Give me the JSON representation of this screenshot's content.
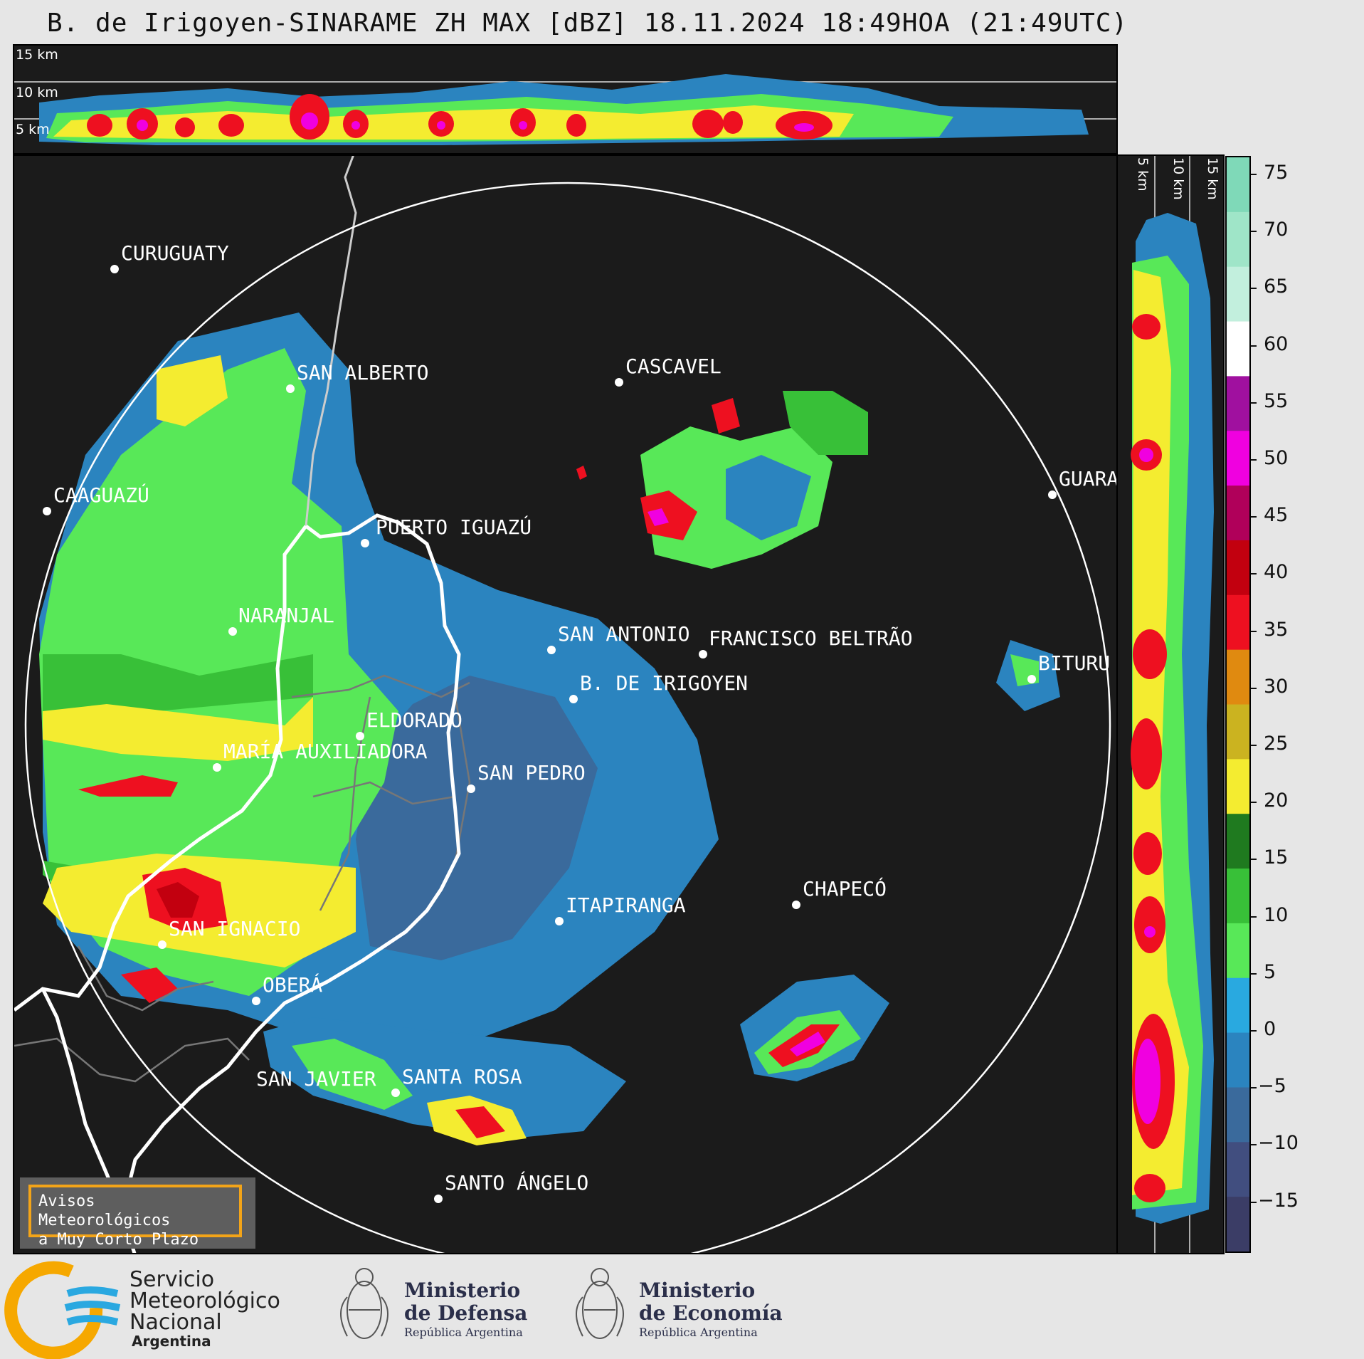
{
  "title": "B. de Irigoyen-SINARAME ZH MAX [dBZ] 18.11.2024 18:49HOA (21:49UTC)",
  "top_panel": {
    "labels": [
      "15 km",
      "10 km",
      "5 km"
    ]
  },
  "side_panel": {
    "labels": [
      "5 km",
      "10 km",
      "15 km"
    ]
  },
  "colorbar": {
    "unit": "dBZ",
    "ticks": [
      "75",
      "70",
      "65",
      "60",
      "55",
      "50",
      "45",
      "40",
      "35",
      "30",
      "25",
      "20",
      "15",
      "10",
      "5",
      "0",
      "−5",
      "−10",
      "−15"
    ],
    "stops": [
      "#7fd9b8",
      "#9fe5c8",
      "#c2efdd",
      "#ffffff",
      "#a0109f",
      "#f000e0",
      "#b0005a",
      "#c2000f",
      "#ee1020",
      "#e08a10",
      "#cbb320",
      "#f4ec30",
      "#1f7a1f",
      "#38c038",
      "#58e858",
      "#29a9e0",
      "#2b84bf",
      "#3a6a9c",
      "#414e7f",
      "#3b3d66"
    ]
  },
  "cities": [
    {
      "name": "CURUGUATY",
      "id": "curuguaty"
    },
    {
      "name": "SAN ALBERTO",
      "id": "san-alberto"
    },
    {
      "name": "CASCAVEL",
      "id": "cascavel"
    },
    {
      "name": "CAAGUAZÚ",
      "id": "caaguazu"
    },
    {
      "name": "GUARA",
      "id": "guara"
    },
    {
      "name": "PUERTO IGUAZÚ",
      "id": "puerto-iguazu"
    },
    {
      "name": "NARANJAL",
      "id": "naranjal"
    },
    {
      "name": "SAN ANTONIO",
      "id": "san-antonio"
    },
    {
      "name": "FRANCISCO BELTRÃO",
      "id": "francisco-beltrao"
    },
    {
      "name": "B. DE IRIGOYEN",
      "id": "b-de-irigoyen"
    },
    {
      "name": "BITURU",
      "id": "bituru"
    },
    {
      "name": "ELDORADO",
      "id": "eldorado"
    },
    {
      "name": "MARÍA AUXILIADORA",
      "id": "maria-auxiliadora"
    },
    {
      "name": "SAN PEDRO",
      "id": "san-pedro"
    },
    {
      "name": "CHAPECÓ",
      "id": "chapeco"
    },
    {
      "name": "ITAPIRANGA",
      "id": "itapiranga"
    },
    {
      "name": "SAN IGNACIO",
      "id": "san-ignacio"
    },
    {
      "name": "OBERÁ",
      "id": "obera"
    },
    {
      "name": "SAN JAVIER",
      "id": "san-javier"
    },
    {
      "name": "SANTA ROSA",
      "id": "santa-rosa"
    },
    {
      "name": "SANTO ÁNGELO",
      "id": "santo-angelo"
    }
  ],
  "warning": {
    "line1": "Avisos Meteorológicos",
    "line2": "a Muy Corto Plazo"
  },
  "footer": {
    "smn": {
      "line1": "Servicio",
      "line2": "Meteorológico",
      "line3": "Nacional",
      "line4": "Argentina"
    },
    "defensa": {
      "line1": "Ministerio",
      "line2": "de Defensa",
      "sub": "República Argentina"
    },
    "economia": {
      "line1": "Ministerio",
      "line2": "de Economía",
      "sub": "República Argentina"
    }
  }
}
